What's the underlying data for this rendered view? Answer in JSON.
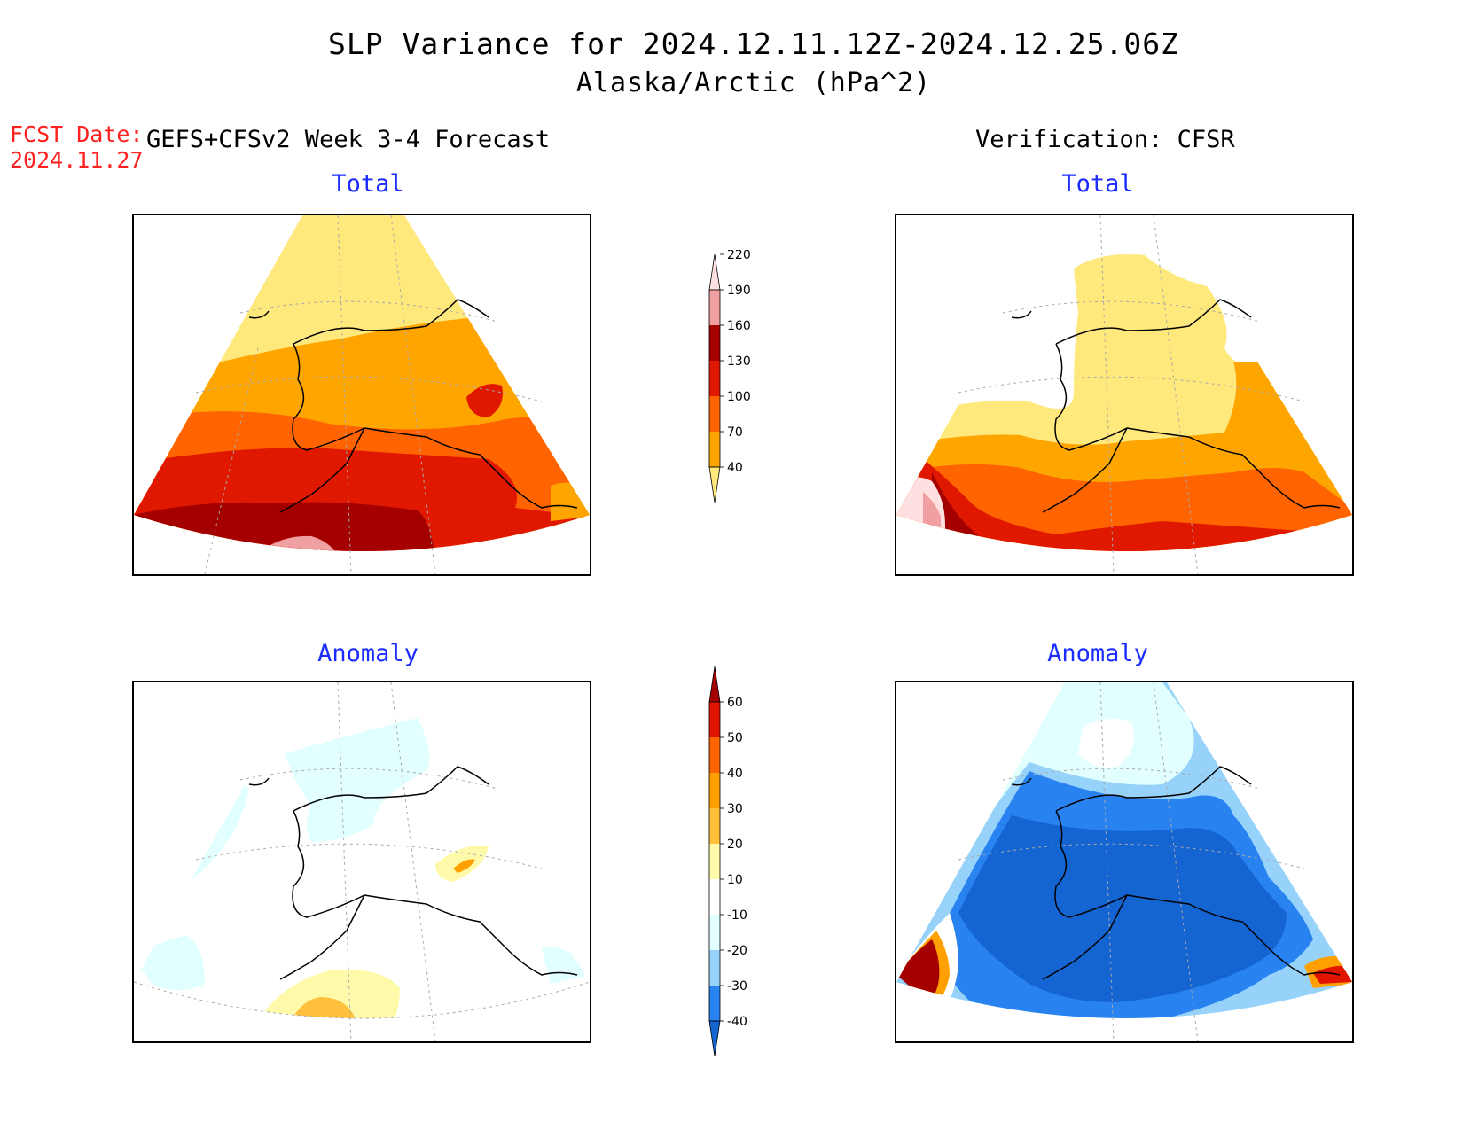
{
  "title": {
    "line1": "SLP Variance for 2024.12.11.12Z-2024.12.25.06Z",
    "line2": "Alaska/Arctic (hPa^2)"
  },
  "forecast": {
    "date_label": "FCST Date:",
    "date_value": "2024.11.27",
    "model_label": "GEFS+CFSv2 Week 3-4 Forecast"
  },
  "verification": {
    "label": "Verification: CFSR"
  },
  "panels": {
    "forecast_total": {
      "title": "Total"
    },
    "verification_total": {
      "title": "Total"
    },
    "forecast_anomaly": {
      "title": "Anomaly"
    },
    "verification_anomaly": {
      "title": "Anomaly"
    }
  },
  "colorbars": {
    "total": {
      "ticks": [
        "40",
        "70",
        "100",
        "130",
        "160",
        "190",
        "220"
      ],
      "colors": [
        "#ffe87c",
        "#ffa500",
        "#ff6400",
        "#e11800",
        "#a50000",
        "#f0a0a0",
        "#ffe0e0"
      ]
    },
    "anomaly": {
      "ticks": [
        "-40",
        "-30",
        "-20",
        "-10",
        "10",
        "20",
        "30",
        "40",
        "50",
        "60"
      ],
      "colors": [
        "#1464d2",
        "#2882f0",
        "#96d2fa",
        "#e1ffff",
        "#ffffff",
        "#fffaaa",
        "#ffc03c",
        "#ffa000",
        "#ff6400",
        "#e11400",
        "#a50000"
      ]
    }
  },
  "legend_colors": {
    "c40": "#ffe87c",
    "c70": "#ffa500",
    "c100": "#ff6400",
    "c130": "#e11800",
    "c160": "#a50000",
    "c190": "#f0a0a0",
    "c220": "#ffe0e0",
    "a_m40": "#1464d2",
    "a_m30": "#2882f0",
    "a_m20": "#96d2fa",
    "a_m10": "#e1ffff",
    "a_p10": "#fffaaa",
    "a_p20": "#ffc03c",
    "a_p30": "#ffa000"
  }
}
